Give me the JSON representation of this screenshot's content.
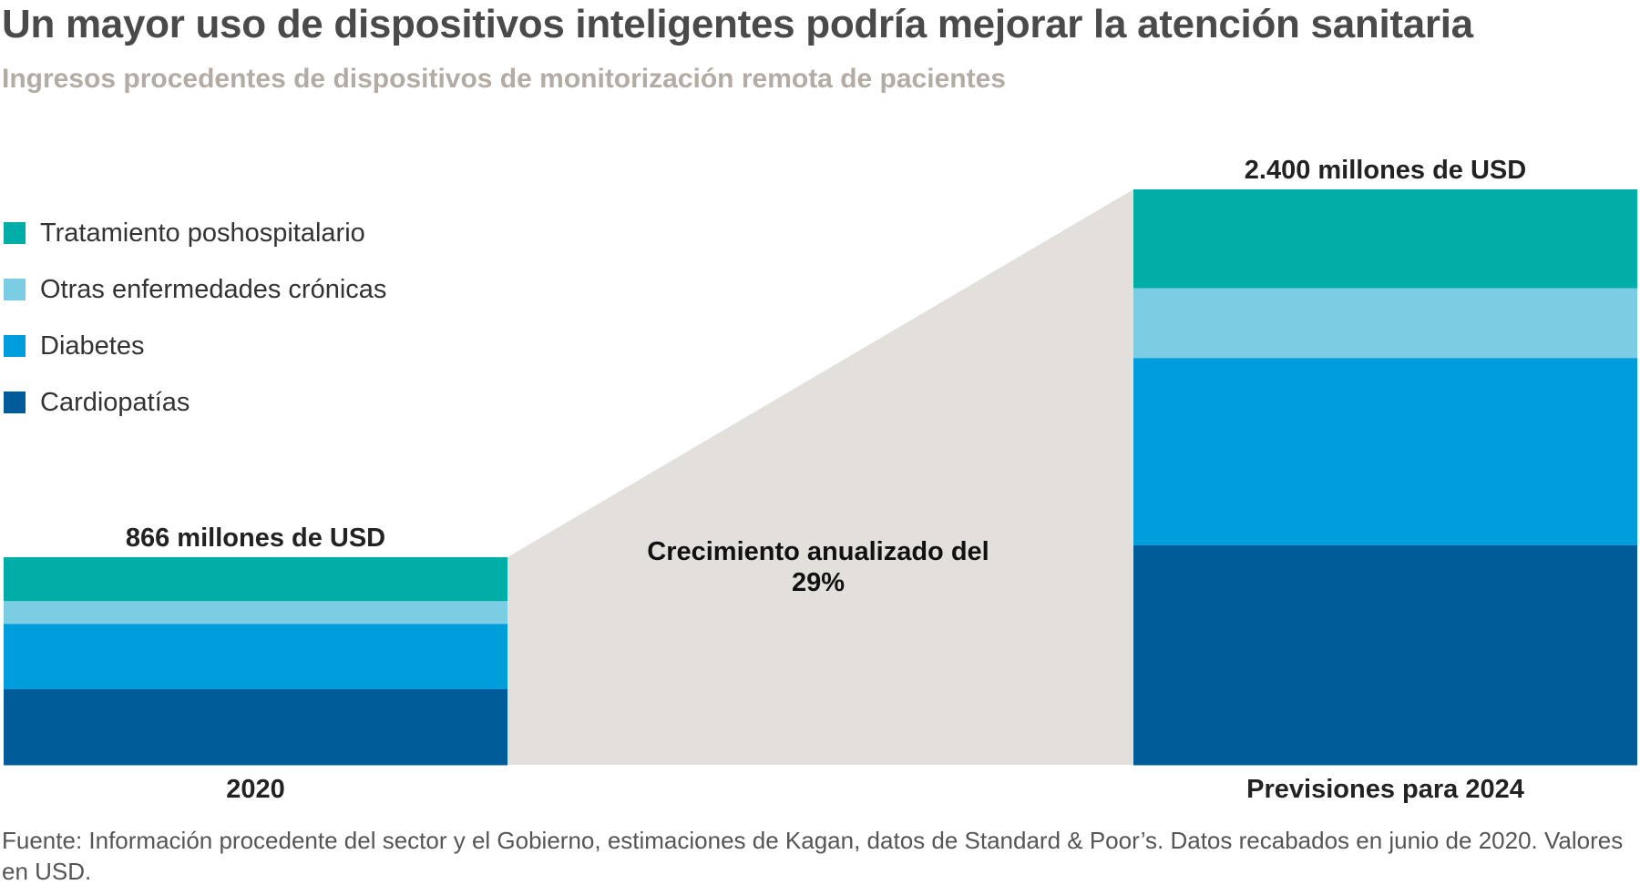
{
  "header": {
    "title": "Un mayor uso de dispositivos inteligentes podría mejorar la atención sanitaria",
    "subtitle": "Ingresos procedentes de dispositivos de monitorización remota de pacientes"
  },
  "chart_data": {
    "type": "bar",
    "stacked": true,
    "categories": [
      "2020",
      "Previsiones para 2024"
    ],
    "totals": [
      866,
      2400
    ],
    "total_labels": [
      "866 millones de USD",
      "2.400 millones de USD"
    ],
    "units": "millones de USD",
    "series": [
      {
        "name": "Cardiopatías",
        "color": "#005b99",
        "values": [
          317,
          917
        ]
      },
      {
        "name": "Diabetes",
        "color": "#009ddd",
        "values": [
          272,
          781
        ]
      },
      {
        "name": "Otras enfermedades crónicas",
        "color": "#7acde3",
        "values": [
          96,
          292
        ]
      },
      {
        "name": "Tratamiento poshospitalario",
        "color": "#00aea8",
        "values": [
          181,
          410
        ]
      }
    ],
    "legend_order": [
      3,
      2,
      1,
      0
    ],
    "legend_position": "left",
    "annotation": "Crecimiento anualizado del 29%",
    "connector_color": "#e3e0dc",
    "grid": false
  },
  "footer": {
    "source": "Fuente: Información procedente del sector y el Gobierno, estimaciones de Kagan, datos de Standard & Poor’s. Datos recabados en junio de 2020. Valores en USD."
  }
}
